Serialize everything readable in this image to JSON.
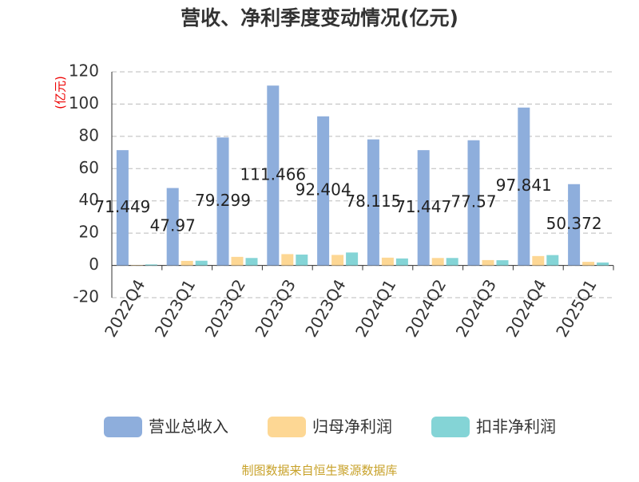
{
  "chart_data": {
    "type": "bar",
    "title": "营收、净利季度变动情况(亿元)",
    "y_label": "(亿元)",
    "source": "制图数据来自恒生聚源数据库",
    "categories": [
      "2022Q4",
      "2023Q1",
      "2023Q2",
      "2023Q3",
      "2023Q4",
      "2024Q1",
      "2024Q2",
      "2024Q3",
      "2024Q4",
      "2025Q1"
    ],
    "series": [
      {
        "name": "营业总收入",
        "color": "#8eaedc",
        "values": [
          71.449,
          47.97,
          79.299,
          111.466,
          92.404,
          78.115,
          71.447,
          77.57,
          97.841,
          50.372
        ]
      },
      {
        "name": "归母净利润",
        "color": "#fdd794",
        "values": [
          0.2,
          2.8,
          5.3,
          7.0,
          6.5,
          4.8,
          4.6,
          3.3,
          5.8,
          2.2
        ]
      },
      {
        "name": "扣非净利润",
        "color": "#84d4d6",
        "values": [
          0.6,
          2.9,
          4.6,
          6.7,
          8.0,
          4.3,
          4.6,
          3.2,
          6.4,
          1.8
        ]
      }
    ],
    "ylim": [
      -20,
      120
    ],
    "yticks": [
      -20,
      0,
      20,
      40,
      60,
      80,
      100,
      120
    ],
    "grid": true
  }
}
